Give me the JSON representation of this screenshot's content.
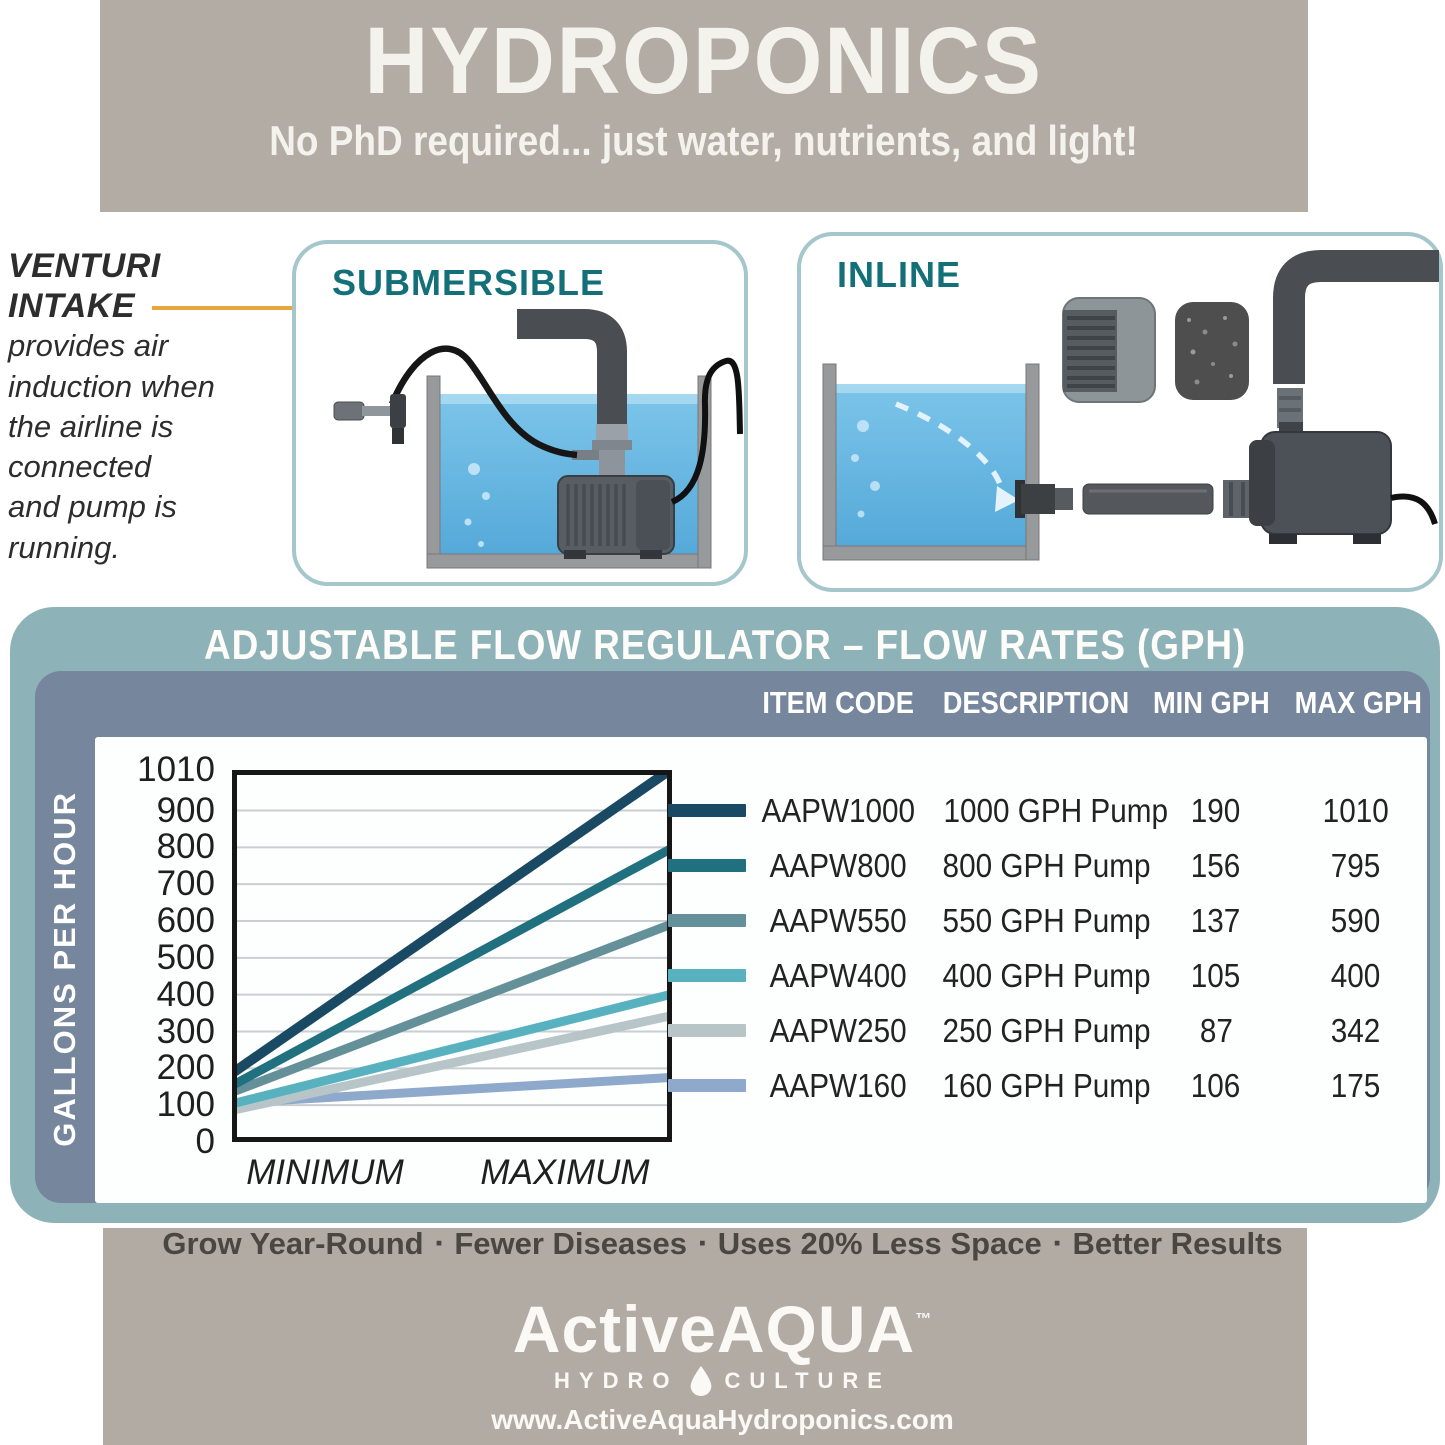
{
  "header": {
    "title": "HYDROPONICS",
    "subtitle": "No PhD required... just water, nutrients, and light!"
  },
  "venturi": {
    "title_line1": "VENTURI",
    "title_line2": "INTAKE",
    "lines": [
      "provides air",
      "induction when",
      "the airline is",
      "connected",
      "and pump is",
      "running."
    ]
  },
  "panels": {
    "submersible_label": "SUBMERSIBLE",
    "inline_label": "INLINE"
  },
  "flow_table": {
    "title": "ADJUSTABLE FLOW REGULATOR – FLOW RATES (GPH)",
    "columns": [
      "ITEM CODE",
      "DESCRIPTION",
      "MIN GPH",
      "MAX GPH"
    ],
    "rows": [
      {
        "code": "AAPW1000",
        "description": "1000 GPH Pump",
        "min": "190",
        "max": "1010"
      },
      {
        "code": "AAPW800",
        "description": "800 GPH Pump",
        "min": "156",
        "max": "795"
      },
      {
        "code": "AAPW550",
        "description": "550 GPH Pump",
        "min": "137",
        "max": "590"
      },
      {
        "code": "AAPW400",
        "description": "400 GPH Pump",
        "min": "105",
        "max": "400"
      },
      {
        "code": "AAPW250",
        "description": "250 GPH Pump",
        "min": "87",
        "max": "342"
      },
      {
        "code": "AAPW160",
        "description": "160 GPH Pump",
        "min": "106",
        "max": "175"
      }
    ]
  },
  "chart_data": {
    "type": "line",
    "title": "ADJUSTABLE FLOW REGULATOR – FLOW RATES (GPH)",
    "ylabel": "GALLONS PER HOUR",
    "x": [
      "MINIMUM",
      "MAXIMUM"
    ],
    "ylim": [
      0,
      1010
    ],
    "yticks": [
      0,
      100,
      200,
      300,
      400,
      500,
      600,
      700,
      800,
      900,
      1010
    ],
    "grid": true,
    "legend_position": "right-table",
    "series": [
      {
        "name": "AAPW1000",
        "values": [
          190,
          1010
        ],
        "color": "#1a4a63"
      },
      {
        "name": "AAPW800",
        "values": [
          156,
          795
        ],
        "color": "#20707f"
      },
      {
        "name": "AAPW550",
        "values": [
          137,
          590
        ],
        "color": "#649199"
      },
      {
        "name": "AAPW400",
        "values": [
          105,
          400
        ],
        "color": "#57b1bf"
      },
      {
        "name": "AAPW250",
        "values": [
          87,
          342
        ],
        "color": "#b7c5c9"
      },
      {
        "name": "AAPW160",
        "values": [
          106,
          175
        ],
        "color": "#8ea9cb"
      }
    ]
  },
  "tagline": {
    "separator": "▪",
    "parts": [
      "Grow Year-Round",
      "Fewer Diseases",
      "Uses 20% Less Space",
      "Better Results"
    ]
  },
  "footer": {
    "brand": "ActiveAQUA",
    "tm": "™",
    "sub_left": "HYDRO",
    "sub_right": "CULTURE",
    "website": "www.ActiveAquaHydroponics.com"
  },
  "colors": {
    "banner_gray": "#b3aca4",
    "card_teal": "#8db3b9",
    "panel_blue_gray": "#75869d",
    "panel_border_teal": "#a5c6cb",
    "heading_teal": "#137079",
    "callout_orange": "#e7a63d",
    "water_blue": "#5fb2e0"
  }
}
